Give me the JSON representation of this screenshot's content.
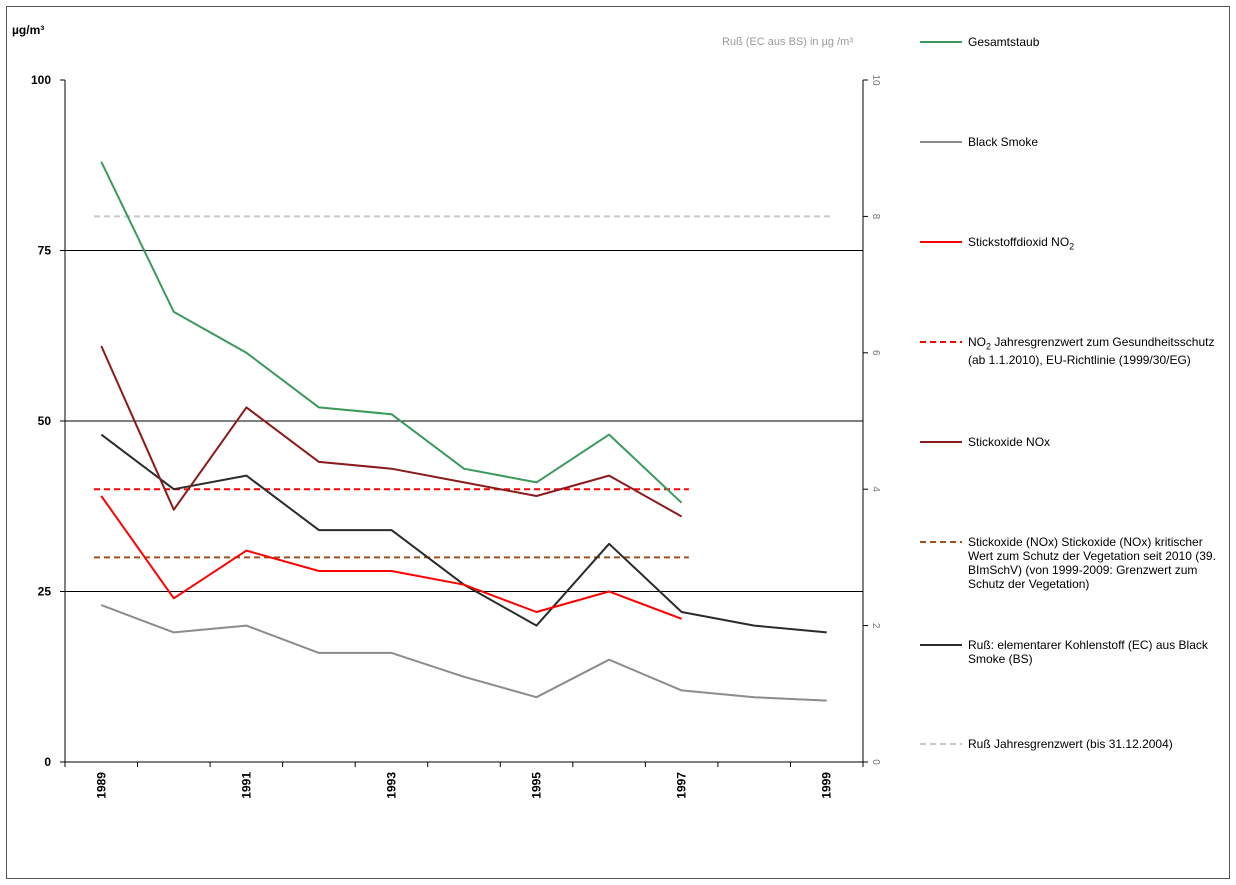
{
  "chart_data": {
    "type": "line",
    "ylabel_left": "µg/m³",
    "ylabel_right": "Ruß (EC aus BS) in µg /m³",
    "x": [
      1989,
      1990,
      1991,
      1992,
      1993,
      1994,
      1995,
      1996,
      1997,
      1998,
      1999
    ],
    "x_tick_labels": [
      "1989",
      "1991",
      "1993",
      "1995",
      "1997",
      "1999"
    ],
    "ylim_left": [
      0,
      100
    ],
    "y_ticks_left": [
      "0",
      "25",
      "50",
      "75",
      "100"
    ],
    "ylim_right": [
      0,
      10
    ],
    "y_ticks_right": [
      "0",
      "2",
      "4",
      "6",
      "8",
      "10"
    ],
    "grid": "horizontal at 25, 50, 75",
    "legend_placement": "right",
    "series": [
      {
        "name": "Gesamtstaub",
        "axis": "left",
        "color": "#3a9a5a",
        "dash": "solid",
        "x": [
          1989,
          1990,
          1991,
          1992,
          1993,
          1994,
          1995,
          1996,
          1997
        ],
        "values": [
          88,
          66,
          60,
          52,
          51,
          43,
          41,
          48,
          38
        ]
      },
      {
        "name": "Black Smoke",
        "axis": "left",
        "color": "#8c8c8c",
        "dash": "solid",
        "x": [
          1989,
          1990,
          1991,
          1992,
          1993,
          1994,
          1995,
          1996,
          1997,
          1998,
          1999
        ],
        "values": [
          23,
          19,
          20,
          16,
          16,
          12.5,
          9.5,
          15,
          10.5,
          9.5,
          9
        ]
      },
      {
        "name": "Stickstoffdioxid NO2",
        "axis": "left",
        "color": "#ff0000",
        "dash": "solid",
        "x": [
          1989,
          1990,
          1991,
          1992,
          1993,
          1994,
          1995,
          1996,
          1997
        ],
        "values": [
          39,
          24,
          31,
          28,
          28,
          26,
          22,
          25,
          21
        ]
      },
      {
        "name": "NO2 Jahresgrenzwert zum Gesundheitsschutz (ab 1.1.2010), EU-Richtlinie (1999/30/EG)",
        "axis": "left",
        "color": "#ff0000",
        "dash": "dashed",
        "x": [
          1989,
          1997
        ],
        "values": [
          40,
          40
        ]
      },
      {
        "name": "Stickoxide NOx",
        "axis": "left",
        "color": "#8b1a1a",
        "dash": "solid",
        "x": [
          1989,
          1990,
          1991,
          1992,
          1993,
          1994,
          1995,
          1996,
          1997
        ],
        "values": [
          61,
          37,
          52,
          44,
          43,
          41,
          39,
          42,
          36
        ]
      },
      {
        "name": "Stickoxide (NOx) Stickoxide (NOx) kritischer Wert zum Schutz der Vegetation seit 2010 (39. BImSchV) (von 1999-2009: Grenzwert zum Schutz der Vegetation)",
        "axis": "left",
        "color": "#a0521e",
        "dash": "dashed",
        "x": [
          1989,
          1997
        ],
        "values": [
          30,
          30
        ]
      },
      {
        "name": "Ruß: elementarer Kohlenstoff (EC) aus Black Smoke (BS)",
        "axis": "right",
        "color": "#2b2b2b",
        "dash": "solid",
        "x": [
          1989,
          1990,
          1991,
          1992,
          1993,
          1994,
          1995,
          1996,
          1997,
          1998,
          1999
        ],
        "values": [
          4.8,
          4.0,
          4.2,
          3.4,
          3.4,
          2.6,
          2.0,
          3.2,
          2.2,
          2.0,
          1.9
        ]
      },
      {
        "name": "Ruß Jahresgrenzwert (bis 31.12.2004)",
        "axis": "right",
        "color": "#c8c8c8",
        "dash": "dashed",
        "x": [
          1989,
          1999
        ],
        "values": [
          8,
          8
        ]
      }
    ]
  },
  "legend": {
    "items": [
      {
        "text": "Gesamtstaub"
      },
      {
        "text": "Black Smoke"
      },
      {
        "text_main": "Stickstoffdioxid NO",
        "text_sub": "2"
      },
      {
        "text_pre": "NO",
        "text_sub": "2",
        "text_post": " Jahresgrenzwert zum Gesundheitsschutz (ab 1.1.2010), EU-Richtlinie (1999/30/EG)"
      },
      {
        "text": "Stickoxide NOx"
      },
      {
        "text": "Stickoxide (NOx) Stickoxide (NOx) kritischer Wert zum Schutz der Vegetation seit 2010 (39. BImSchV) (von 1999-2009: Grenzwert zum Schutz der Vegetation)"
      },
      {
        "text": "Ruß: elementarer Kohlenstoff (EC) aus Black Smoke (BS)"
      },
      {
        "text": "Ruß Jahresgrenzwert (bis 31.12.2004)"
      }
    ]
  }
}
